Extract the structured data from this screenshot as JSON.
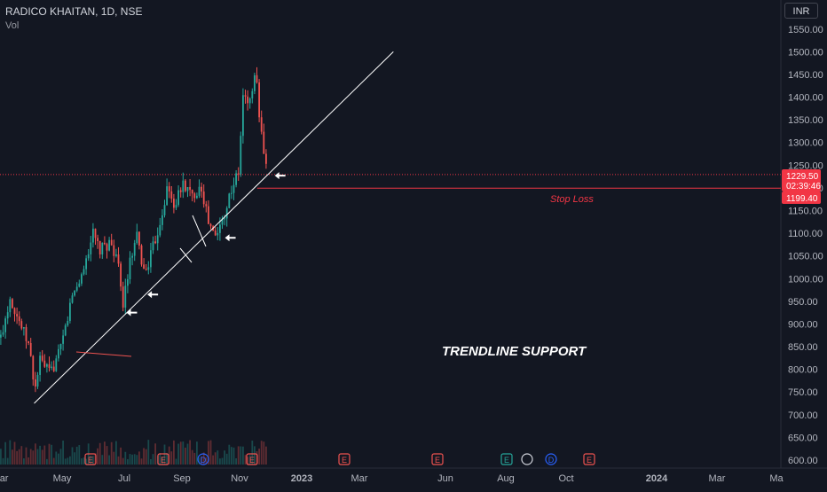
{
  "header": {
    "title": "RADICO KHAITAN, 1D, NSE",
    "volume_label": "Vol"
  },
  "currency_button": "INR",
  "colors": {
    "background": "#131722",
    "up": "#26a69a",
    "down": "#ef5350",
    "axis_text": "#b2b5be",
    "trendline": "#ffffff",
    "price_marker": "#f23645"
  },
  "price_label": {
    "price": "1229.50",
    "countdown": "02:39:46"
  },
  "stop_loss": {
    "value": "1199.40",
    "label": "Stop Loss"
  },
  "annotation": "TRENDLINE SUPPORT",
  "event_markers": [
    "E",
    "E",
    "D",
    "E",
    "E",
    "E",
    "E",
    "D",
    "E"
  ],
  "chart_data": {
    "type": "candlestick",
    "title": "RADICO KHAITAN, 1D, NSE",
    "y_axis": {
      "min": 600,
      "max": 1550,
      "ticks": [
        "1550.00",
        "1500.00",
        "1450.00",
        "1400.00",
        "1350.00",
        "1300.00",
        "1250.00",
        "1200.00",
        "1150.00",
        "1100.00",
        "1050.00",
        "1000.00",
        "950.00",
        "900.00",
        "850.00",
        "800.00",
        "750.00",
        "700.00",
        "650.00",
        "600.00"
      ]
    },
    "x_axis": {
      "ticks": [
        "Mar",
        "May",
        "Jul",
        "Sep",
        "Nov",
        "2023",
        "Mar",
        "Jun",
        "Aug",
        "Oct",
        "2024",
        "Mar",
        "Ma"
      ]
    },
    "price_path": [
      {
        "date": "2022-03-01",
        "close": 870
      },
      {
        "date": "2022-03-20",
        "close": 960
      },
      {
        "date": "2022-04-10",
        "close": 900
      },
      {
        "date": "2022-04-28",
        "close": 850
      },
      {
        "date": "2022-05-10",
        "close": 755
      },
      {
        "date": "2022-05-20",
        "close": 820
      },
      {
        "date": "2022-06-10",
        "close": 790
      },
      {
        "date": "2022-07-01",
        "close": 840
      },
      {
        "date": "2022-07-25",
        "close": 960
      },
      {
        "date": "2022-08-15",
        "close": 1010
      },
      {
        "date": "2022-09-05",
        "close": 1100
      },
      {
        "date": "2022-09-20",
        "close": 1060
      },
      {
        "date": "2022-10-10",
        "close": 1080
      },
      {
        "date": "2022-10-25",
        "close": 1050
      },
      {
        "date": "2022-11-05",
        "close": 940
      },
      {
        "date": "2022-11-20",
        "close": 1030
      },
      {
        "date": "2022-12-05",
        "close": 1090
      },
      {
        "date": "2022-12-20",
        "close": 1010
      },
      {
        "date": "2023-01-05",
        "close": 1060
      },
      {
        "date": "2023-01-20",
        "close": 1120
      },
      {
        "date": "2023-02-05",
        "close": 1200
      },
      {
        "date": "2023-02-20",
        "close": 1160
      },
      {
        "date": "2023-03-10",
        "close": 1210
      },
      {
        "date": "2023-03-28",
        "close": 1180
      },
      {
        "date": "2023-04-15",
        "close": 1210
      },
      {
        "date": "2023-05-01",
        "close": 1120
      },
      {
        "date": "2023-05-15",
        "close": 1090
      },
      {
        "date": "2023-06-01",
        "close": 1140
      },
      {
        "date": "2023-06-20",
        "close": 1210
      },
      {
        "date": "2023-07-01",
        "close": 1230
      },
      {
        "date": "2023-07-10",
        "close": 1400
      },
      {
        "date": "2023-07-25",
        "close": 1390
      },
      {
        "date": "2023-08-05",
        "close": 1460
      },
      {
        "date": "2023-08-15",
        "close": 1330
      },
      {
        "date": "2023-08-28",
        "close": 1229.5
      }
    ],
    "trendline": {
      "from": {
        "date": "2022-05-10",
        "price": 725
      },
      "to": {
        "date": "2024-05-15",
        "price": 1500
      }
    },
    "support_arrows": [
      {
        "date": "2022-11-15",
        "price": 925
      },
      {
        "date": "2022-12-28",
        "price": 965
      },
      {
        "date": "2023-06-05",
        "price": 1090
      },
      {
        "date": "2023-09-15",
        "price": 1227
      }
    ],
    "horizontal_lines": [
      {
        "price": 1229.5,
        "style": "dotted"
      },
      {
        "price": 1199.4,
        "style": "solid",
        "label": "Stop Loss"
      }
    ],
    "grid": false,
    "volume": "shown at bottom"
  }
}
